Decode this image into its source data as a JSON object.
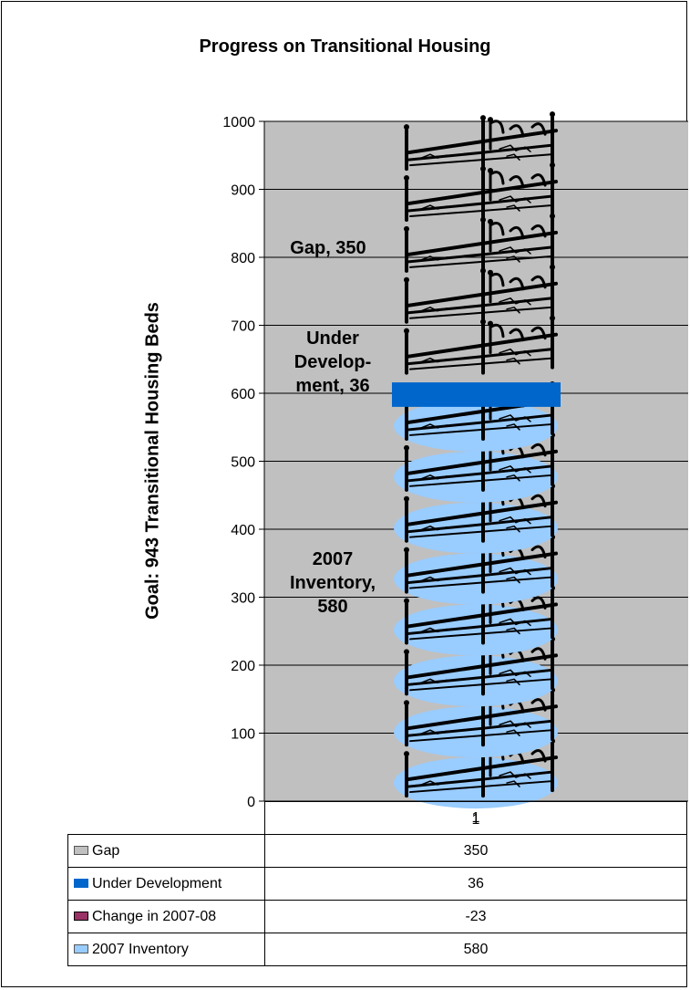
{
  "chart_data": {
    "type": "bar",
    "stacked": true,
    "title": "Progress on Transitional Housing",
    "ylabel": "Goal: 943 Transitional Housing Beds",
    "xlabel": "",
    "categories": [
      "1"
    ],
    "ylim": [
      0,
      1000
    ],
    "yticks": [
      0,
      100,
      200,
      300,
      400,
      500,
      600,
      700,
      800,
      900,
      1000
    ],
    "grid": true,
    "series": [
      {
        "name": "2007 Inventory",
        "values": [
          580
        ],
        "color": "#99ccff",
        "fill": "bed-icon-stack-blue"
      },
      {
        "name": "Change in 2007-08",
        "values": [
          -23
        ],
        "color": "#993366"
      },
      {
        "name": "Under Development",
        "values": [
          36
        ],
        "color": "#0066cc"
      },
      {
        "name": "Gap",
        "values": [
          350
        ],
        "color": "#c0c0c0",
        "fill": "bed-icon-stack"
      }
    ],
    "annotations": [
      {
        "text": "Gap, 350",
        "lines": [
          "Gap, 350"
        ]
      },
      {
        "text": "Under Development, 36",
        "lines": [
          "Under",
          "Develop-",
          "ment, 36"
        ]
      },
      {
        "text": "2007 Inventory, 580",
        "lines": [
          "2007",
          "Inventory,",
          "580"
        ]
      }
    ],
    "table": {
      "header": "1",
      "rows": [
        {
          "label": "Gap",
          "value": "350"
        },
        {
          "label": "Under Development",
          "value": "36"
        },
        {
          "label": "Change in 2007-08",
          "value": "-23"
        },
        {
          "label": "2007 Inventory",
          "value": "580"
        }
      ]
    },
    "plot_background": "#c0c0c0"
  }
}
